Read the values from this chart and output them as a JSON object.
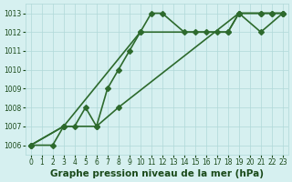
{
  "xlim": [
    -0.5,
    23.5
  ],
  "ylim": [
    1005.5,
    1013.5
  ],
  "yticks": [
    1006,
    1007,
    1008,
    1009,
    1010,
    1011,
    1012,
    1013
  ],
  "xticks": [
    0,
    1,
    2,
    3,
    4,
    5,
    6,
    7,
    8,
    9,
    10,
    11,
    12,
    13,
    14,
    15,
    16,
    17,
    18,
    19,
    20,
    21,
    22,
    23
  ],
  "xlabel": "Graphe pression niveau de la mer (hPa)",
  "bg_color": "#d6f0f0",
  "grid_color": "#b0d8d8",
  "line_color": "#2d6a2d",
  "label_color": "#1a4a1a",
  "tick_fontsize": 5.5,
  "xlabel_fontsize": 7.5,
  "linewidth": 1.2,
  "markersize": 3,
  "line1_x": [
    0,
    3,
    10,
    11,
    12,
    14,
    15,
    16,
    17,
    18,
    19,
    21,
    22,
    23
  ],
  "line1_y": [
    1006,
    1007,
    1012,
    1013,
    1013,
    1012,
    1012,
    1012,
    1012,
    1012,
    1013,
    1013,
    1013,
    1013
  ],
  "line2_x": [
    0,
    2,
    3,
    4,
    5,
    6,
    7,
    8,
    9,
    10,
    18,
    19,
    21,
    22,
    23
  ],
  "line2_y": [
    1006,
    1006,
    1007,
    1007,
    1008,
    1007,
    1009,
    1010,
    1011,
    1012,
    1012,
    1013,
    1013,
    1013,
    1013
  ],
  "line3_x": [
    0,
    3,
    6,
    8,
    19,
    21,
    23
  ],
  "line3_y": [
    1006,
    1007,
    1007,
    1008,
    1013,
    1012,
    1013
  ]
}
